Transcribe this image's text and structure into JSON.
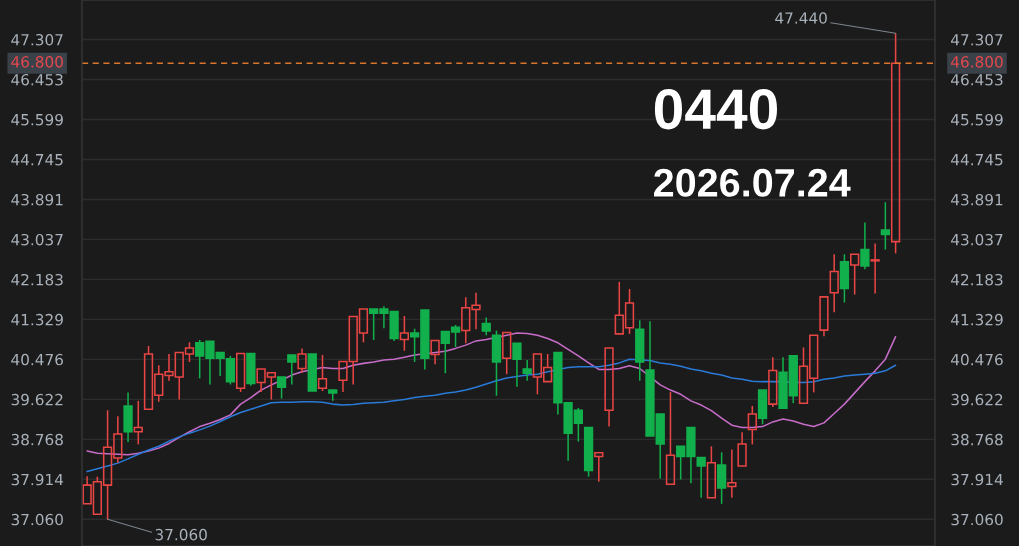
{
  "chart_data": {
    "type": "candlestick",
    "title": "0440",
    "subtitle": "2026.07.24",
    "categories": [
      null,
      null,
      null,
      null,
      null,
      null,
      null,
      null,
      null,
      null,
      null,
      null,
      null,
      null,
      null,
      null,
      null,
      null,
      null,
      null,
      null,
      null,
      null,
      null,
      null,
      null,
      null,
      null,
      null,
      null,
      null,
      null,
      null,
      null,
      null,
      null,
      null,
      null,
      null,
      null,
      null,
      null,
      null,
      null,
      null,
      null,
      null,
      null,
      null,
      null,
      null,
      null,
      null,
      null,
      null,
      null,
      null,
      null,
      null,
      null,
      null,
      null,
      null,
      null,
      null,
      null,
      null,
      null,
      null,
      null,
      null,
      null,
      null,
      null,
      null,
      null,
      null,
      null,
      null,
      null
    ],
    "ohlc": [
      [
        37.39,
        37.98,
        37.39,
        37.79
      ],
      [
        37.17,
        37.97,
        37.17,
        37.86
      ],
      [
        37.79,
        39.39,
        37.06,
        38.6
      ],
      [
        38.37,
        39.26,
        38.27,
        38.88
      ],
      [
        39.48,
        39.77,
        38.71,
        38.93
      ],
      [
        38.93,
        39.59,
        38.66,
        39.02
      ],
      [
        39.41,
        40.76,
        39.41,
        40.59
      ],
      [
        39.71,
        40.35,
        39.57,
        40.16
      ],
      [
        40.13,
        40.59,
        40.02,
        40.21
      ],
      [
        40.1,
        40.62,
        39.62,
        40.62
      ],
      [
        40.59,
        40.84,
        40.42,
        40.72
      ],
      [
        40.83,
        40.89,
        40.07,
        40.55
      ],
      [
        40.86,
        40.87,
        39.94,
        40.5
      ],
      [
        40.62,
        40.62,
        40.12,
        40.5
      ],
      [
        40.49,
        40.55,
        39.94,
        40.0
      ],
      [
        39.86,
        40.6,
        39.78,
        40.6
      ],
      [
        40.6,
        40.6,
        39.91,
        39.96
      ],
      [
        39.98,
        40.27,
        39.78,
        40.27
      ],
      [
        40.1,
        40.19,
        39.62,
        40.19
      ],
      [
        40.1,
        40.1,
        39.64,
        39.88
      ],
      [
        40.57,
        40.57,
        39.94,
        40.42
      ],
      [
        40.28,
        40.71,
        40.19,
        40.59
      ],
      [
        40.59,
        40.59,
        39.8,
        39.8
      ],
      [
        39.86,
        40.57,
        39.8,
        40.06
      ],
      [
        39.82,
        39.82,
        39.59,
        39.76
      ],
      [
        40.03,
        40.43,
        39.78,
        40.43
      ],
      [
        40.43,
        41.39,
        39.94,
        41.39
      ],
      [
        41.04,
        41.55,
        40.84,
        41.55
      ],
      [
        41.55,
        41.55,
        40.89,
        41.46
      ],
      [
        41.55,
        41.61,
        41.14,
        41.46
      ],
      [
        41.5,
        41.5,
        40.87,
        40.92
      ],
      [
        40.9,
        41.4,
        40.66,
        41.04
      ],
      [
        41.04,
        41.13,
        40.42,
        40.96
      ],
      [
        41.53,
        41.53,
        40.26,
        40.5
      ],
      [
        40.58,
        40.88,
        40.37,
        40.88
      ],
      [
        41.07,
        41.07,
        40.18,
        40.82
      ],
      [
        41.16,
        41.21,
        40.74,
        41.06
      ],
      [
        41.09,
        41.8,
        40.82,
        41.58
      ],
      [
        41.54,
        41.9,
        41.12,
        41.63
      ],
      [
        41.24,
        41.37,
        40.99,
        41.08
      ],
      [
        40.99,
        41.09,
        39.7,
        40.42
      ],
      [
        40.5,
        41.05,
        40.16,
        41.05
      ],
      [
        40.82,
        40.82,
        39.89,
        40.48
      ],
      [
        40.27,
        40.46,
        40.02,
        40.18
      ],
      [
        40.1,
        40.59,
        39.73,
        40.59
      ],
      [
        40.0,
        40.59,
        40.0,
        40.3
      ],
      [
        40.62,
        40.62,
        39.3,
        39.55
      ],
      [
        39.55,
        39.55,
        38.31,
        38.9
      ],
      [
        39.39,
        39.44,
        38.72,
        39.11
      ],
      [
        39.02,
        39.02,
        37.97,
        38.1
      ],
      [
        38.4,
        38.48,
        37.86,
        38.48
      ],
      [
        39.39,
        40.72,
        39.04,
        40.72
      ],
      [
        41.02,
        42.13,
        41.02,
        41.42
      ],
      [
        41.15,
        41.98,
        41.02,
        41.68
      ],
      [
        41.12,
        41.31,
        40.02,
        40.42
      ],
      [
        40.25,
        41.29,
        38.84,
        38.84
      ],
      [
        39.31,
        39.31,
        37.93,
        38.67
      ],
      [
        37.81,
        39.78,
        37.81,
        38.43
      ],
      [
        38.62,
        38.62,
        37.91,
        38.4
      ],
      [
        39.02,
        39.02,
        37.83,
        38.4
      ],
      [
        38.38,
        38.38,
        37.52,
        38.2
      ],
      [
        37.52,
        38.62,
        37.52,
        38.27
      ],
      [
        38.22,
        38.49,
        37.39,
        37.73
      ],
      [
        37.76,
        38.55,
        37.52,
        37.84
      ],
      [
        38.2,
        38.92,
        38.2,
        38.67
      ],
      [
        38.98,
        39.48,
        38.66,
        39.31
      ],
      [
        39.82,
        39.82,
        39.09,
        39.22
      ],
      [
        39.52,
        40.52,
        39.46,
        40.24
      ],
      [
        40.2,
        40.52,
        39.43,
        39.43
      ],
      [
        40.55,
        40.55,
        39.54,
        39.7
      ],
      [
        39.54,
        40.73,
        39.54,
        40.33
      ],
      [
        40.07,
        40.99,
        39.77,
        40.99
      ],
      [
        41.1,
        41.81,
        40.97,
        41.81
      ],
      [
        41.9,
        42.72,
        41.48,
        42.35
      ],
      [
        42.56,
        42.72,
        41.69,
        41.99
      ],
      [
        42.49,
        42.72,
        41.86,
        42.72
      ],
      [
        42.82,
        43.4,
        42.4,
        42.47
      ],
      [
        42.58,
        42.95,
        41.88,
        42.6
      ],
      [
        43.24,
        43.83,
        42.82,
        43.14
      ],
      [
        42.99,
        47.44,
        42.74,
        46.8
      ]
    ],
    "colors": [
      "#e84545",
      "#e84545",
      "#e84545",
      "#e84545",
      "#12b04c",
      "#e84545",
      "#e84545",
      "#e84545",
      "#e84545",
      "#e84545",
      "#e84545",
      "#12b04c",
      "#12b04c",
      "#12b04c",
      "#12b04c",
      "#e84545",
      "#12b04c",
      "#e84545",
      "#e84545",
      "#12b04c",
      "#12b04c",
      "#e84545",
      "#12b04c",
      "#e84545",
      "#12b04c",
      "#e84545",
      "#e84545",
      "#e84545",
      "#12b04c",
      "#12b04c",
      "#12b04c",
      "#e84545",
      "#12b04c",
      "#12b04c",
      "#e84545",
      "#12b04c",
      "#12b04c",
      "#e84545",
      "#e84545",
      "#12b04c",
      "#12b04c",
      "#e84545",
      "#12b04c",
      "#12b04c",
      "#e84545",
      "#e84545",
      "#12b04c",
      "#12b04c",
      "#12b04c",
      "#12b04c",
      "#e84545",
      "#e84545",
      "#e84545",
      "#e84545",
      "#12b04c",
      "#12b04c",
      "#12b04c",
      "#e84545",
      "#12b04c",
      "#12b04c",
      "#12b04c",
      "#e84545",
      "#12b04c",
      "#e84545",
      "#e84545",
      "#e84545",
      "#12b04c",
      "#e84545",
      "#12b04c",
      "#12b04c",
      "#e84545",
      "#e84545",
      "#e84545",
      "#e84545",
      "#12b04c",
      "#e84545",
      "#12b04c",
      "#e84545",
      "#12b04c",
      "#e84545"
    ],
    "series": [
      {
        "type": "line",
        "color": "#c76cc9",
        "values": [
          38.52,
          38.47,
          38.46,
          38.45,
          38.44,
          38.47,
          38.52,
          38.58,
          38.68,
          38.81,
          38.93,
          39.04,
          39.11,
          39.19,
          39.29,
          39.52,
          39.66,
          39.82,
          39.93,
          40.03,
          40.14,
          40.21,
          null,
          40.3,
          40.28,
          40.28,
          40.35,
          40.39,
          40.42,
          40.46,
          40.48,
          40.52,
          40.57,
          null,
          40.62,
          40.65,
          40.71,
          40.78,
          40.87,
          40.9,
          null,
          40.99,
          41.04,
          41.03,
          40.99,
          40.92,
          40.83,
          40.69,
          40.55,
          40.4,
          40.26,
          40.26,
          40.28,
          40.34,
          40.28,
          null,
          39.93,
          39.82,
          39.73,
          39.59,
          39.5,
          39.38,
          39.22,
          39.07,
          39.02,
          39.02,
          39.04,
          39.14,
          39.2,
          39.16,
          39.09,
          39.04,
          39.12,
          39.32,
          39.52,
          39.76,
          40.0,
          40.23,
          40.48,
          40.96
        ]
      },
      {
        "type": "line",
        "color": "#2a7ad8",
        "values": [
          38.08,
          38.14,
          38.2,
          38.26,
          38.35,
          38.45,
          38.54,
          38.62,
          38.73,
          38.82,
          38.9,
          38.97,
          39.05,
          39.15,
          39.25,
          39.34,
          39.41,
          39.48,
          39.55,
          39.56,
          39.56,
          39.57,
          39.57,
          39.56,
          39.52,
          39.5,
          39.51,
          39.54,
          39.55,
          39.56,
          39.59,
          39.62,
          39.66,
          39.69,
          39.71,
          39.75,
          39.78,
          39.82,
          39.88,
          39.95,
          40.02,
          40.08,
          40.11,
          40.14,
          40.16,
          40.21,
          null,
          40.3,
          40.32,
          40.32,
          40.32,
          40.35,
          40.4,
          40.48,
          null,
          40.45,
          40.4,
          40.37,
          40.33,
          40.27,
          40.23,
          40.18,
          40.14,
          40.08,
          40.05,
          40.01,
          40.0,
          40.0,
          null,
          null,
          39.98,
          40.0,
          40.05,
          40.08,
          40.12,
          40.14,
          40.16,
          40.18,
          40.23,
          40.35
        ]
      }
    ],
    "ylim": [
      36.49,
      48.15
    ],
    "yticks": [
      {
        "value": 37.06,
        "label": "37.060"
      },
      37.914,
      38.768,
      39.622,
      40.476,
      41.329,
      42.183,
      43.037,
      43.891,
      44.745,
      45.599,
      46.453,
      47.307
    ],
    "y2lim": [
      36.49,
      48.15
    ],
    "y2ticks": [
      {
        "value": 37.06,
        "label": "37.060"
      },
      37.914,
      38.768,
      39.622,
      40.476,
      41.329,
      42.183,
      43.037,
      43.891,
      44.745,
      45.599,
      46.453,
      47.307
    ],
    "grid": "y",
    "tick_labels": "y",
    "ref_lines": [
      {
        "axis": "y",
        "value": 46.8,
        "label": "46.800",
        "color": "#d9752c",
        "line_style": "dashed"
      }
    ],
    "annotations": [
      "47.440",
      "37.060"
    ]
  }
}
